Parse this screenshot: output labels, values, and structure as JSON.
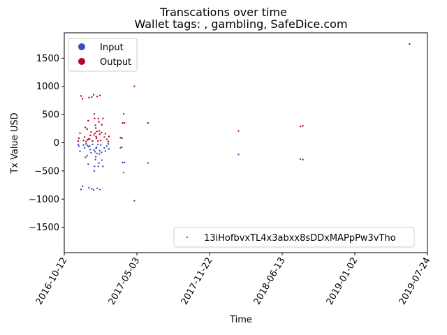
{
  "chart_data": {
    "type": "scatter",
    "title": "Transcations over time",
    "subtitle": "Wallet tags: , gambling, SafeDice.com",
    "xlabel": "Time",
    "ylabel": "Tx Value USD",
    "xlim": [
      "2016-10-12",
      "2019-07-24"
    ],
    "ylim": [
      -1950,
      1950
    ],
    "x_ticks": [
      "2016-10-12",
      "2017-05-03",
      "2017-11-22",
      "2018-06-13",
      "2019-01-02",
      "2019-07-24"
    ],
    "y_ticks": [
      -1500,
      -1000,
      -500,
      0,
      500,
      1000,
      1500
    ],
    "grid": false,
    "legend": {
      "placement": "upper-left",
      "entries": [
        {
          "label": "Input",
          "color": "#3b4cc0"
        },
        {
          "label": "Output",
          "color": "#b40426"
        }
      ]
    },
    "address_legend": {
      "placement": "lower-right",
      "label": "13iHofbvxTL4x3abxx8sDDxMAPpPw3vTho",
      "color": "#3b7fa8"
    },
    "series": [
      {
        "name": "Input",
        "color": "#3b4cc0",
        "points": [
          [
            "2016-11-20",
            -30
          ],
          [
            "2016-11-22",
            -60
          ],
          [
            "2016-11-25",
            -150
          ],
          [
            "2016-11-28",
            -830
          ],
          [
            "2016-12-02",
            -770
          ],
          [
            "2016-12-05",
            -40
          ],
          [
            "2016-12-08",
            -90
          ],
          [
            "2016-12-10",
            -260
          ],
          [
            "2016-12-12",
            -20
          ],
          [
            "2016-12-15",
            -230
          ],
          [
            "2016-12-18",
            -380
          ],
          [
            "2016-12-20",
            -800
          ],
          [
            "2016-12-22",
            -60
          ],
          [
            "2016-12-24",
            -120
          ],
          [
            "2016-12-26",
            -180
          ],
          [
            "2016-12-28",
            -820
          ],
          [
            "2016-12-30",
            -30
          ],
          [
            "2017-01-02",
            -840
          ],
          [
            "2017-01-04",
            -500
          ],
          [
            "2017-01-05",
            -420
          ],
          [
            "2017-01-07",
            -300
          ],
          [
            "2017-01-08",
            -250
          ],
          [
            "2017-01-10",
            -80
          ],
          [
            "2017-01-12",
            -810
          ],
          [
            "2017-01-14",
            -30
          ],
          [
            "2017-01-15",
            -420
          ],
          [
            "2017-01-17",
            -360
          ],
          [
            "2017-01-18",
            -200
          ],
          [
            "2017-01-20",
            -830
          ],
          [
            "2017-01-22",
            -40
          ],
          [
            "2017-01-25",
            -310
          ],
          [
            "2017-01-28",
            -420
          ],
          [
            "2017-02-01",
            -90
          ],
          [
            "2017-02-04",
            -150
          ],
          [
            "2017-02-08",
            -60
          ],
          [
            "2017-02-12",
            -20
          ],
          [
            "2017-02-14",
            -110
          ],
          [
            "2017-01-03",
            -130
          ],
          [
            "2017-01-06",
            -160
          ],
          [
            "2017-01-11",
            -190
          ],
          [
            "2016-12-16",
            -50
          ],
          [
            "2016-12-19",
            -70
          ],
          [
            "2017-01-09",
            -100
          ],
          [
            "2017-01-19",
            -140
          ],
          [
            "2017-01-24",
            -170
          ],
          [
            "2017-03-18",
            -90
          ],
          [
            "2017-03-22",
            -80
          ],
          [
            "2017-03-24",
            -350
          ],
          [
            "2017-03-27",
            -530
          ],
          [
            "2017-03-29",
            -350
          ],
          [
            "2017-04-26",
            -1030
          ],
          [
            "2017-06-03",
            -360
          ],
          [
            "2018-02-11",
            -210
          ],
          [
            "2018-08-03",
            -290
          ],
          [
            "2018-08-10",
            -300
          ]
        ]
      },
      {
        "name": "Output",
        "color": "#b40426",
        "points": [
          [
            "2016-11-20",
            30
          ],
          [
            "2016-11-22",
            80
          ],
          [
            "2016-11-25",
            170
          ],
          [
            "2016-11-28",
            830
          ],
          [
            "2016-12-02",
            780
          ],
          [
            "2016-12-05",
            40
          ],
          [
            "2016-12-08",
            100
          ],
          [
            "2016-12-10",
            270
          ],
          [
            "2016-12-12",
            20
          ],
          [
            "2016-12-15",
            240
          ],
          [
            "2016-12-18",
            390
          ],
          [
            "2016-12-20",
            800
          ],
          [
            "2016-12-22",
            60
          ],
          [
            "2016-12-24",
            130
          ],
          [
            "2016-12-26",
            190
          ],
          [
            "2016-12-28",
            810
          ],
          [
            "2016-12-30",
            30
          ],
          [
            "2017-01-02",
            850
          ],
          [
            "2017-01-04",
            510
          ],
          [
            "2017-01-05",
            430
          ],
          [
            "2017-01-07",
            310
          ],
          [
            "2017-01-08",
            260
          ],
          [
            "2017-01-10",
            80
          ],
          [
            "2017-01-12",
            820
          ],
          [
            "2017-01-14",
            30
          ],
          [
            "2017-01-15",
            430
          ],
          [
            "2017-01-17",
            370
          ],
          [
            "2017-01-18",
            210
          ],
          [
            "2017-01-20",
            840
          ],
          [
            "2017-01-22",
            40
          ],
          [
            "2017-01-25",
            320
          ],
          [
            "2017-01-28",
            430
          ],
          [
            "2017-02-01",
            100
          ],
          [
            "2017-02-04",
            160
          ],
          [
            "2017-02-08",
            60
          ],
          [
            "2017-02-12",
            20
          ],
          [
            "2017-02-14",
            110
          ],
          [
            "2017-01-03",
            140
          ],
          [
            "2017-01-06",
            170
          ],
          [
            "2017-01-11",
            200
          ],
          [
            "2016-12-16",
            50
          ],
          [
            "2016-12-19",
            70
          ],
          [
            "2017-01-09",
            110
          ],
          [
            "2017-01-19",
            150
          ],
          [
            "2017-01-24",
            180
          ],
          [
            "2017-03-18",
            90
          ],
          [
            "2017-03-22",
            80
          ],
          [
            "2017-03-24",
            350
          ],
          [
            "2017-03-27",
            510
          ],
          [
            "2017-03-29",
            350
          ],
          [
            "2017-04-26",
            1000
          ],
          [
            "2017-06-03",
            350
          ],
          [
            "2018-02-11",
            210
          ],
          [
            "2018-08-03",
            290
          ],
          [
            "2018-08-10",
            300
          ],
          [
            "2019-06-04",
            1750
          ]
        ]
      }
    ]
  }
}
